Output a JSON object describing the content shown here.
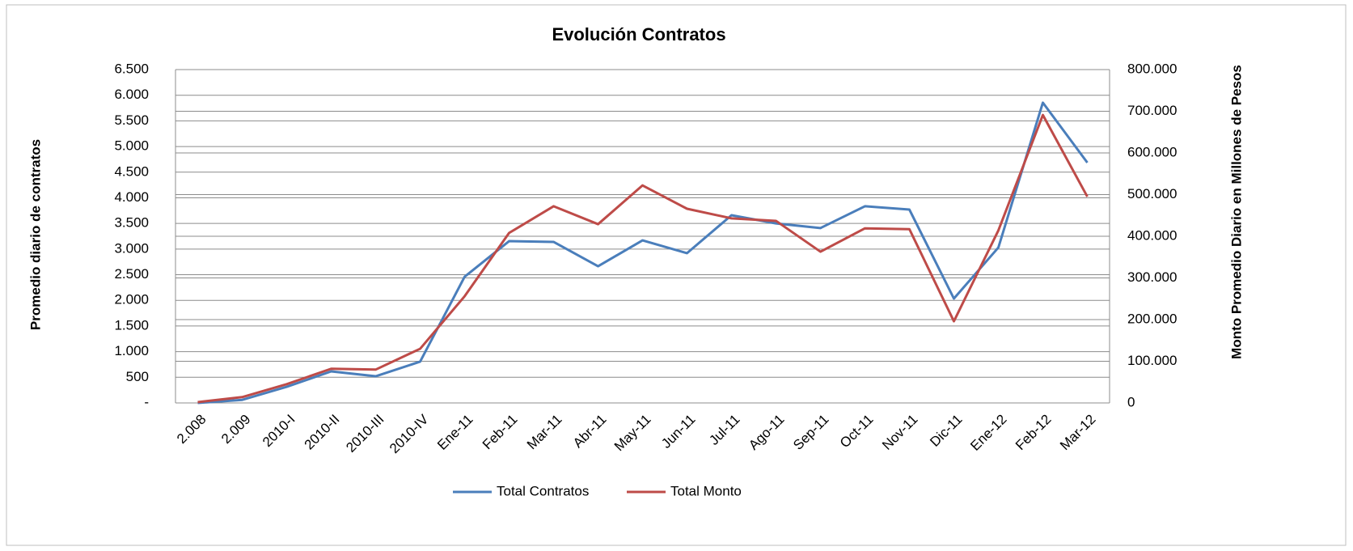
{
  "chart_data": {
    "type": "line",
    "title": "Evolución Contratos",
    "ylabel": "Promedio diario de contratos",
    "y2label": "Monto Promedio Diario en Millones de Pesos",
    "categories": [
      "2.008",
      "2.009",
      "2010-I",
      "2010-II",
      "2010-III",
      "2010-IV",
      "Ene-11",
      "Feb-11",
      "Mar-11",
      "Abr-11",
      "May-11",
      "Jun-11",
      "Jul-11",
      "Ago-11",
      "Sep-11",
      "Oct-11",
      "Nov-11",
      "Dic-11",
      "Ene-12",
      "Feb-12",
      "Mar-12"
    ],
    "series": [
      {
        "name": "Total Contratos",
        "color": "#4a7ebb",
        "axis": "y",
        "values": [
          0,
          60,
          315,
          615,
          520,
          805,
          2460,
          3155,
          3140,
          2665,
          3170,
          2920,
          3660,
          3500,
          3410,
          3835,
          3770,
          2035,
          3030,
          5855,
          4685
        ]
      },
      {
        "name": "Total Monto",
        "color": "#be4b48",
        "axis": "y2",
        "values": [
          2000,
          14000,
          45000,
          82000,
          80000,
          130000,
          256000,
          408000,
          472000,
          429000,
          522000,
          466000,
          443000,
          437000,
          363000,
          419000,
          417000,
          196000,
          414000,
          691000,
          495000
        ]
      }
    ],
    "ylim": [
      0,
      6500
    ],
    "yticks": [
      {
        "value": 0,
        "label": "-"
      },
      500,
      {
        "value": 1000,
        "label": "1.000"
      },
      {
        "value": 1500,
        "label": "1.500"
      },
      {
        "value": 2000,
        "label": "2.000"
      },
      {
        "value": 2500,
        "label": "2.500"
      },
      {
        "value": 3000,
        "label": "3.000"
      },
      {
        "value": 3500,
        "label": "3.500"
      },
      {
        "value": 4000,
        "label": "4.000"
      },
      {
        "value": 4500,
        "label": "4.500"
      },
      {
        "value": 5000,
        "label": "5.000"
      },
      {
        "value": 5500,
        "label": "5.500"
      },
      {
        "value": 6000,
        "label": "6.000"
      },
      {
        "value": 6500,
        "label": "6.500"
      }
    ],
    "y2lim": [
      0,
      800000
    ],
    "y2ticks": [
      0,
      {
        "value": 100000,
        "label": "100.000"
      },
      {
        "value": 200000,
        "label": "200.000"
      },
      {
        "value": 300000,
        "label": "300.000"
      },
      {
        "value": 400000,
        "label": "400.000"
      },
      {
        "value": 500000,
        "label": "500.000"
      },
      {
        "value": 600000,
        "label": "600.000"
      },
      {
        "value": 700000,
        "label": "700.000"
      },
      {
        "value": 800000,
        "label": "800.000"
      }
    ],
    "grid": true,
    "legend": "bottom"
  }
}
